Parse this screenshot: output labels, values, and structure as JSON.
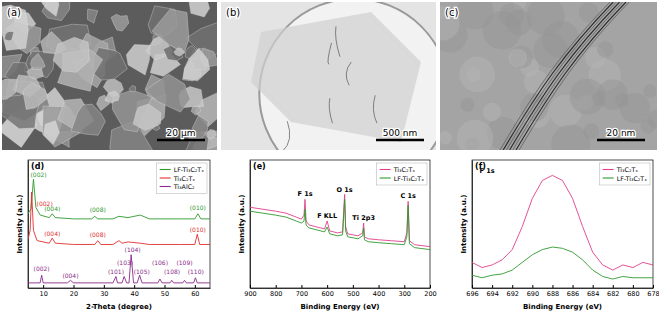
{
  "images": [
    {
      "label": "(a)",
      "scale_bar": "20 μm"
    },
    {
      "label": "(b)",
      "scale_bar": "500 nm"
    },
    {
      "label": "(c)",
      "scale_bar": "20 nm"
    }
  ],
  "chart_data": [
    {
      "type": "line",
      "title": "(d)",
      "xlabel": "2-Theta (degree)",
      "ylabel": "Intensity (a.u.)",
      "xlim": [
        5,
        65
      ],
      "xticks": [
        10,
        20,
        30,
        40,
        50,
        60
      ],
      "ylim": [
        0,
        100
      ],
      "yticks": [],
      "tick_labels": "x",
      "legend": "top-right",
      "series": [
        {
          "name": "LF-Ti₃C₂Tₓ",
          "color": "#2e9a2e",
          "x": [
            5,
            6,
            6.8,
            7.6,
            9,
            12,
            13,
            14,
            20,
            26,
            27,
            28,
            33,
            35,
            38,
            42,
            45,
            55,
            60,
            61,
            62,
            65
          ],
          "values": [
            58,
            62,
            85,
            63,
            57,
            55,
            58,
            55,
            54,
            54,
            56,
            54,
            54,
            56,
            55,
            57,
            54,
            54,
            54,
            58,
            54,
            54
          ],
          "annotations": [
            {
              "text": "(002)",
              "x": 8.5,
              "y": 87
            },
            {
              "text": "(004)",
              "x": 13,
              "y": 60
            },
            {
              "text": "(008)",
              "x": 28,
              "y": 59
            },
            {
              "text": "(010)",
              "x": 61,
              "y": 61
            }
          ]
        },
        {
          "name": "Ti₃C₂Tₓ",
          "color": "#e0302f",
          "x": [
            5,
            5.7,
            6.2,
            6.8,
            8,
            12,
            13,
            14,
            20,
            27,
            28,
            29,
            33,
            35,
            36,
            38,
            42,
            45,
            55,
            60,
            60.8,
            61.6,
            65
          ],
          "values": [
            38,
            45,
            75,
            45,
            37,
            35,
            39,
            35,
            34,
            34,
            37,
            34,
            34,
            37,
            35,
            36,
            35,
            34,
            34,
            34,
            42,
            34,
            34
          ],
          "annotations": [
            {
              "text": "(002)",
              "x": 10.5,
              "y": 64
            },
            {
              "text": "(004)",
              "x": 13,
              "y": 41
            },
            {
              "text": "(008)",
              "x": 28,
              "y": 40
            },
            {
              "text": "(010)",
              "x": 61,
              "y": 44
            }
          ]
        },
        {
          "name": "Ti₃AlC₂",
          "color": "#8b2a8b",
          "x": [
            5,
            9,
            9.5,
            10,
            18,
            19,
            20,
            33,
            34,
            34.5,
            36,
            36.7,
            37.5,
            38.3,
            39,
            39.8,
            41,
            41.8,
            42.6,
            47.8,
            48.5,
            49.2,
            51.8,
            52.4,
            53,
            56,
            56.6,
            57.2,
            59.6,
            60.2,
            60.8,
            65
          ],
          "values": [
            4,
            4,
            10,
            4,
            4,
            6,
            4,
            4,
            9,
            4,
            4,
            9,
            4,
            4,
            26,
            4,
            4,
            10,
            4,
            4,
            7,
            4,
            4,
            6,
            4,
            4,
            6,
            4,
            4,
            8,
            4,
            4
          ],
          "annotations": [
            {
              "text": "(002)",
              "x": 9.5,
              "y": 13
            },
            {
              "text": "(004)",
              "x": 19,
              "y": 8
            },
            {
              "text": "(101)",
              "x": 34,
              "y": 11
            },
            {
              "text": "(103)",
              "x": 37,
              "y": 18
            },
            {
              "text": "(104)",
              "x": 39.5,
              "y": 28
            },
            {
              "text": "(105)",
              "x": 42.5,
              "y": 11
            },
            {
              "text": "(106)",
              "x": 48.5,
              "y": 18
            },
            {
              "text": "(108)",
              "x": 52.5,
              "y": 11
            },
            {
              "text": "(109)",
              "x": 56.6,
              "y": 18
            },
            {
              "text": "(110)",
              "x": 60.3,
              "y": 11
            }
          ]
        }
      ]
    },
    {
      "type": "line",
      "title": "(e)",
      "xlabel": "Binding Energy (eV)",
      "ylabel": "Intensity (a.u.)",
      "xlim": [
        900,
        200
      ],
      "xticks": [
        900,
        800,
        700,
        600,
        500,
        400,
        300,
        200
      ],
      "ylim": [
        0,
        130
      ],
      "yticks": [],
      "tick_labels": "x",
      "legend": "top-right",
      "annotations": [
        {
          "text": "F 1s",
          "x": 686,
          "y": 93
        },
        {
          "text": "F KLL",
          "x": 600,
          "y": 71
        },
        {
          "text": "O 1s",
          "x": 532,
          "y": 98
        },
        {
          "text": "Ti 2p3",
          "x": 458,
          "y": 69
        },
        {
          "text": "C 1s",
          "x": 285,
          "y": 91
        }
      ],
      "series": [
        {
          "name": "Ti₃C₂Tₓ",
          "color": "#e0408a",
          "x": [
            900,
            850,
            800,
            760,
            720,
            700,
            690,
            686,
            682,
            670,
            640,
            610,
            600,
            590,
            560,
            540,
            532,
            528,
            520,
            480,
            462,
            458,
            455,
            440,
            400,
            350,
            300,
            290,
            285,
            280,
            260,
            200
          ],
          "values": [
            82,
            80,
            78,
            76,
            72,
            70,
            74,
            90,
            68,
            64,
            62,
            60,
            68,
            58,
            56,
            57,
            95,
            62,
            55,
            53,
            56,
            66,
            52,
            50,
            49,
            48,
            47,
            56,
            88,
            48,
            44,
            42
          ]
        },
        {
          "name": "LF-Ti₃C₂Tₓ",
          "color": "#2e9a2e",
          "x": [
            900,
            850,
            800,
            760,
            720,
            700,
            690,
            686,
            682,
            670,
            640,
            610,
            600,
            590,
            560,
            540,
            532,
            528,
            520,
            480,
            462,
            458,
            455,
            440,
            400,
            350,
            300,
            290,
            285,
            280,
            260,
            200
          ],
          "values": [
            78,
            76,
            74,
            72,
            68,
            66,
            68,
            80,
            64,
            61,
            59,
            57,
            62,
            55,
            53,
            54,
            90,
            58,
            52,
            50,
            53,
            61,
            49,
            47,
            46,
            45,
            44,
            52,
            84,
            45,
            41,
            39
          ]
        }
      ]
    },
    {
      "type": "line",
      "title": "(f)",
      "xlabel": "Binding Energy (eV)",
      "ylabel": "Intensity (a.u.)",
      "xlim": [
        696,
        678
      ],
      "xticks": [
        696,
        694,
        692,
        690,
        688,
        686,
        684,
        682,
        680,
        678
      ],
      "ylim": [
        0,
        100
      ],
      "yticks": [],
      "tick_labels": "x",
      "legend": "top-right",
      "annotations": [
        {
          "text": "F 1s",
          "x": 694.5,
          "y": 90
        }
      ],
      "series": [
        {
          "name": "Ti₃C₂Tₓ",
          "color": "#e0408a",
          "x": [
            696,
            695,
            694,
            693,
            692,
            691,
            690,
            689,
            688,
            687,
            686,
            685,
            684,
            683,
            682,
            681,
            680,
            679,
            678
          ],
          "values": [
            20,
            16,
            18,
            22,
            30,
            48,
            70,
            84,
            88,
            84,
            70,
            48,
            28,
            18,
            14,
            18,
            16,
            20,
            18
          ]
        },
        {
          "name": "LF-Ti₃C₂Tₓ",
          "color": "#2e9a2e",
          "x": [
            696,
            695,
            694,
            693,
            692,
            691,
            690,
            689,
            688,
            687,
            686,
            685,
            684,
            683,
            682,
            681,
            680,
            679,
            678
          ],
          "values": [
            10,
            8,
            10,
            11,
            14,
            20,
            26,
            30,
            32,
            31,
            28,
            22,
            14,
            9,
            7,
            9,
            8,
            8,
            8
          ]
        }
      ]
    }
  ]
}
